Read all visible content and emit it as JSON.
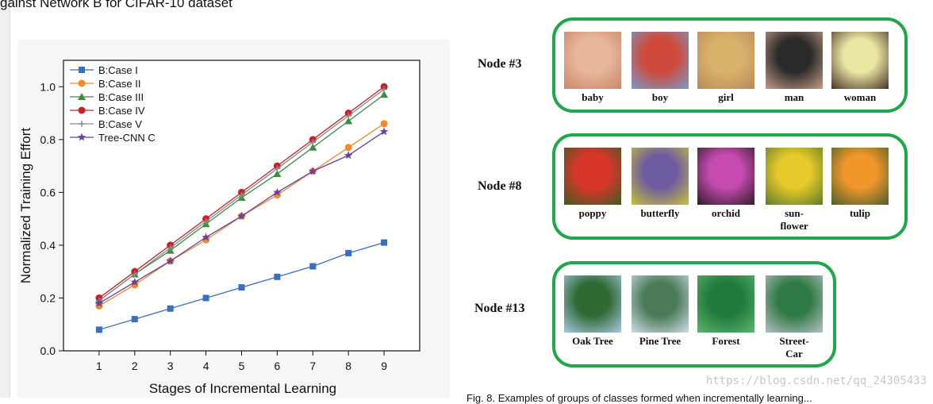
{
  "header": {
    "caption_fragment": "gainst Network B for CIFAR-10 dataset"
  },
  "footer": {
    "caption_fragment": "Fig. 8. Examples of groups of classes formed when incrementally learning..."
  },
  "watermark": "https://blog.csdn.net/qq_24305433",
  "chart_data": {
    "type": "line",
    "xlabel": "Stages of Incremental Learning",
    "ylabel": "Normalized Training Effort",
    "x": [
      1,
      2,
      3,
      4,
      5,
      6,
      7,
      8,
      9
    ],
    "xlim": [
      0.0,
      10.0
    ],
    "ylim": [
      0,
      1.1
    ],
    "yticks": [
      0.0,
      0.2,
      0.4,
      0.6,
      0.8,
      1.0
    ],
    "ytick_labels": [
      "0.0",
      "0.2",
      "0.4",
      "0.6",
      "0.8",
      "1.0"
    ],
    "legend_placement": "top-left",
    "grid": false,
    "series": [
      {
        "name": "B:Case I",
        "color": "#3a6ebf",
        "marker": "square",
        "values": [
          0.08,
          0.12,
          0.16,
          0.2,
          0.24,
          0.28,
          0.32,
          0.37,
          0.41
        ]
      },
      {
        "name": "B:Case II",
        "color": "#f08a2c",
        "marker": "circle",
        "values": [
          0.17,
          0.25,
          0.34,
          0.42,
          0.51,
          0.59,
          0.68,
          0.77,
          0.86
        ]
      },
      {
        "name": "B:Case III",
        "color": "#3b8f3f",
        "marker": "triangle",
        "values": [
          0.19,
          0.29,
          0.38,
          0.48,
          0.58,
          0.67,
          0.77,
          0.87,
          0.97
        ]
      },
      {
        "name": "B:Case IV",
        "color": "#c8202a",
        "marker": "circle",
        "values": [
          0.2,
          0.3,
          0.4,
          0.5,
          0.6,
          0.7,
          0.8,
          0.9,
          1.0
        ]
      },
      {
        "name": "B:Case V",
        "color": "#8a8a8a",
        "marker": "plus",
        "values": [
          0.19,
          0.29,
          0.39,
          0.49,
          0.59,
          0.69,
          0.79,
          0.89,
          0.99
        ]
      },
      {
        "name": "Tree-CNN C",
        "color": "#6a3fa0",
        "marker": "star",
        "values": [
          0.18,
          0.26,
          0.34,
          0.43,
          0.51,
          0.6,
          0.68,
          0.74,
          0.83
        ]
      }
    ]
  },
  "nodes": [
    {
      "label": "Node #3",
      "items": [
        {
          "caption": "baby",
          "c1": "#e8b79a",
          "c2": "#c9866a"
        },
        {
          "caption": "boy",
          "c1": "#cf4a3a",
          "c2": "#7a9ac8"
        },
        {
          "caption": "girl",
          "c1": "#d9b26c",
          "c2": "#b78a5a"
        },
        {
          "caption": "man",
          "c1": "#2a2a2a",
          "c2": "#c79c84"
        },
        {
          "caption": "woman",
          "c1": "#e9e7a4",
          "c2": "#4b3226"
        }
      ]
    },
    {
      "label": "Node #8",
      "items": [
        {
          "caption": "poppy",
          "c1": "#d9362a",
          "c2": "#3f5a22"
        },
        {
          "caption": "butterfly",
          "c1": "#6e5ca0",
          "c2": "#c8c23a"
        },
        {
          "caption": "orchid",
          "c1": "#c64bb0",
          "c2": "#301b28"
        },
        {
          "caption": "sun-flower",
          "line1": "sun-",
          "line2": "flower",
          "c1": "#e6c92a",
          "c2": "#5f7a2c"
        },
        {
          "caption": "tulip",
          "c1": "#f0962a",
          "c2": "#4b5f2a"
        }
      ]
    },
    {
      "label": "Node #13",
      "items": [
        {
          "caption": "Oak Tree",
          "c1": "#2f6a33",
          "c2": "#a9c9e4"
        },
        {
          "caption": "Pine Tree",
          "c1": "#4a7a58",
          "c2": "#cfdde6"
        },
        {
          "caption": "Forest",
          "c1": "#1f7a3c",
          "c2": "#5fb36e"
        },
        {
          "caption": "Street-Car",
          "line1": "Street-",
          "line2": "Car",
          "c1": "#2f7a44",
          "c2": "#b7c0c6"
        }
      ]
    }
  ]
}
